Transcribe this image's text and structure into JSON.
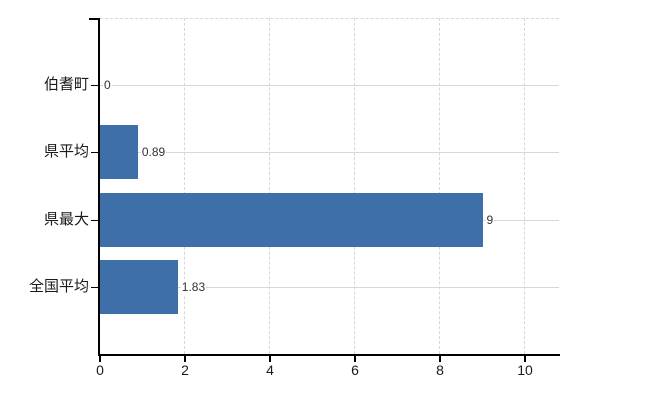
{
  "chart_data": {
    "type": "bar",
    "orientation": "horizontal",
    "title": "",
    "categories": [
      "伯耆町",
      "県平均",
      "県最大",
      "全国平均"
    ],
    "values": [
      0,
      0.89,
      9,
      1.83
    ],
    "value_labels": [
      "0",
      "0.89",
      "9",
      "1.83"
    ],
    "x_axis": {
      "tick_labels": [
        "0",
        "2",
        "4",
        "6",
        "8",
        "10"
      ],
      "tick_values": [
        0,
        2,
        4,
        6,
        8,
        10
      ],
      "min": 0,
      "max": 10.8
    },
    "grid": true,
    "legend_position": "none",
    "colors": {
      "bar": "#3e6fa9",
      "axis": "#000000",
      "h_gridline": "#d3dad3",
      "v_gridline": "#d8d5db",
      "category_text": "#1a1a1a",
      "tick_text": "#1a1a1a",
      "value_text": "#333333",
      "background": "#ffffff"
    }
  }
}
